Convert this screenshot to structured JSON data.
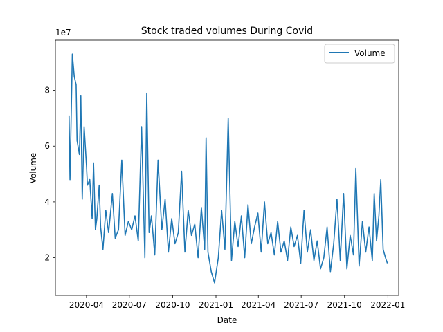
{
  "chart_data": {
    "type": "line",
    "title": "Stock traded volumes During Covid",
    "xlabel": "Date",
    "ylabel": "Volume",
    "y_offset_label": "1e7",
    "y_scale": 10000000,
    "ylim": [
      6500000,
      98000000
    ],
    "xlim": [
      "2020-01-26",
      "2022-01-24"
    ],
    "x_ticks": [
      {
        "date": "2020-04-01",
        "label": "2020-04"
      },
      {
        "date": "2020-07-01",
        "label": "2020-07"
      },
      {
        "date": "2020-10-01",
        "label": "2020-10"
      },
      {
        "date": "2021-01-01",
        "label": "2021-01"
      },
      {
        "date": "2021-04-01",
        "label": "2021-04"
      },
      {
        "date": "2021-07-01",
        "label": "2021-07"
      },
      {
        "date": "2021-10-01",
        "label": "2021-10"
      },
      {
        "date": "2022-01-01",
        "label": "2022-01"
      }
    ],
    "y_ticks": [
      {
        "value": 20000000,
        "label": "2"
      },
      {
        "value": 40000000,
        "label": "4"
      },
      {
        "value": 60000000,
        "label": "6"
      },
      {
        "value": 80000000,
        "label": "8"
      }
    ],
    "legend": {
      "position": "top-right",
      "entries": [
        "Volume"
      ]
    },
    "grid": false,
    "color": "#1f77b4",
    "series": [
      {
        "name": "Volume",
        "x": [
          "2020-02-24",
          "2020-02-26",
          "2020-03-02",
          "2020-03-06",
          "2020-03-10",
          "2020-03-12",
          "2020-03-17",
          "2020-03-20",
          "2020-03-23",
          "2020-03-27",
          "2020-04-01",
          "2020-04-03",
          "2020-04-08",
          "2020-04-13",
          "2020-04-16",
          "2020-04-20",
          "2020-04-23",
          "2020-04-28",
          "2020-05-01",
          "2020-05-06",
          "2020-05-12",
          "2020-05-18",
          "2020-05-26",
          "2020-06-01",
          "2020-06-08",
          "2020-06-15",
          "2020-06-22",
          "2020-06-29",
          "2020-07-06",
          "2020-07-13",
          "2020-07-20",
          "2020-07-27",
          "2020-08-03",
          "2020-08-07",
          "2020-08-12",
          "2020-08-17",
          "2020-08-24",
          "2020-08-31",
          "2020-09-08",
          "2020-09-15",
          "2020-09-22",
          "2020-09-29",
          "2020-10-06",
          "2020-10-13",
          "2020-10-20",
          "2020-10-27",
          "2020-11-03",
          "2020-11-10",
          "2020-11-17",
          "2020-11-24",
          "2020-12-01",
          "2020-12-08",
          "2020-12-11",
          "2020-12-15",
          "2020-12-22",
          "2020-12-29",
          "2021-01-06",
          "2021-01-13",
          "2021-01-20",
          "2021-01-27",
          "2021-02-03",
          "2021-02-10",
          "2021-02-17",
          "2021-02-24",
          "2021-03-03",
          "2021-03-10",
          "2021-03-17",
          "2021-03-24",
          "2021-03-31",
          "2021-04-07",
          "2021-04-14",
          "2021-04-21",
          "2021-04-28",
          "2021-05-05",
          "2021-05-12",
          "2021-05-19",
          "2021-05-26",
          "2021-06-02",
          "2021-06-09",
          "2021-06-16",
          "2021-06-23",
          "2021-06-30",
          "2021-07-07",
          "2021-07-14",
          "2021-07-21",
          "2021-07-28",
          "2021-08-04",
          "2021-08-11",
          "2021-08-18",
          "2021-08-25",
          "2021-09-01",
          "2021-09-08",
          "2021-09-15",
          "2021-09-22",
          "2021-09-29",
          "2021-10-06",
          "2021-10-13",
          "2021-10-20",
          "2021-10-25",
          "2021-11-01",
          "2021-11-08",
          "2021-11-15",
          "2021-11-22",
          "2021-11-29",
          "2021-12-03",
          "2021-12-08",
          "2021-12-13",
          "2021-12-17",
          "2021-12-22",
          "2021-12-27",
          "2021-12-31"
        ],
        "values": [
          71000000,
          48000000,
          93000000,
          85000000,
          82000000,
          62000000,
          57000000,
          78000000,
          41000000,
          67000000,
          53000000,
          46000000,
          48000000,
          34000000,
          54000000,
          30000000,
          34000000,
          46000000,
          31000000,
          23000000,
          37000000,
          29000000,
          43000000,
          27000000,
          30000000,
          55000000,
          28000000,
          33000000,
          30000000,
          35000000,
          26000000,
          67000000,
          20000000,
          79000000,
          29000000,
          35000000,
          21000000,
          55000000,
          30000000,
          41000000,
          22000000,
          34000000,
          25000000,
          29000000,
          51000000,
          22000000,
          37000000,
          28000000,
          32000000,
          20000000,
          38000000,
          23000000,
          63000000,
          22000000,
          15000000,
          11000000,
          20000000,
          37000000,
          23000000,
          70000000,
          19000000,
          33000000,
          24000000,
          35000000,
          20000000,
          39000000,
          25000000,
          31000000,
          36000000,
          22000000,
          40000000,
          25000000,
          29000000,
          21000000,
          33000000,
          22000000,
          26000000,
          19000000,
          31000000,
          24000000,
          28000000,
          18000000,
          37000000,
          22000000,
          30000000,
          19000000,
          26000000,
          16000000,
          20000000,
          31000000,
          15000000,
          25000000,
          41000000,
          19000000,
          43000000,
          16000000,
          28000000,
          21000000,
          52000000,
          17000000,
          33000000,
          22000000,
          31000000,
          19000000,
          43000000,
          26000000,
          35000000,
          48000000,
          23000000,
          20000000,
          18000000
        ]
      }
    ]
  }
}
